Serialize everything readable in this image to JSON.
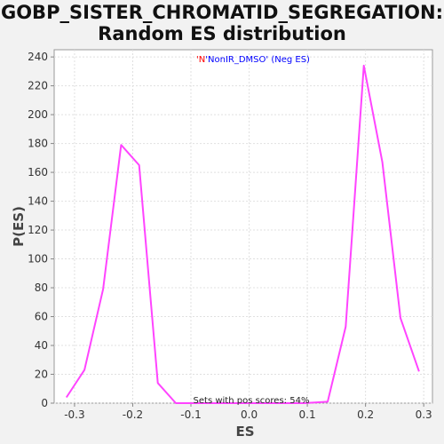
{
  "chart_data": {
    "type": "line",
    "title_line1": "GOBP_SISTER_CHROMATID_SEGREGATION:",
    "title_line2": "Random ES distribution",
    "xlabel": "ES",
    "ylabel": "P(ES)",
    "xlim": [
      -0.335,
      0.315
    ],
    "ylim": [
      0,
      245
    ],
    "xticks": [
      -0.3,
      -0.2,
      -0.1,
      0.0,
      0.1,
      0.2,
      0.3
    ],
    "xtick_labels": [
      "-0.3",
      "-0.2",
      "-0.1",
      "0.0",
      "0.1",
      "0.2",
      "0.3"
    ],
    "yticks": [
      0,
      20,
      40,
      60,
      80,
      100,
      120,
      140,
      160,
      180,
      200,
      220,
      240
    ],
    "ytick_labels": [
      "0",
      "20",
      "40",
      "60",
      "80",
      "100",
      "120",
      "140",
      "160",
      "180",
      "200",
      "220",
      "240"
    ],
    "grid": true,
    "legend": {
      "position": "top-center",
      "part1": "'N",
      "part2": "'NonIR_DMSO'",
      "part3": " (Neg ES)",
      "part1_color": "#ff0000",
      "part2_color": "#0000ff",
      "part3_color": "#0000ff"
    },
    "annotation": "Sets with pos scores: 54%",
    "series": [
      {
        "color": "#ff44ff",
        "x": [
          -0.314,
          -0.283,
          -0.251,
          -0.22,
          -0.189,
          -0.157,
          -0.126,
          -0.095,
          -0.063,
          -0.032,
          0.0,
          0.031,
          0.062,
          0.094,
          0.135,
          0.166,
          0.197,
          0.229,
          0.26,
          0.292
        ],
        "y": [
          4,
          23,
          79,
          179,
          165,
          14,
          0,
          0,
          0,
          0,
          0,
          0,
          0,
          0,
          1,
          53,
          234,
          167,
          59,
          22
        ]
      }
    ]
  }
}
